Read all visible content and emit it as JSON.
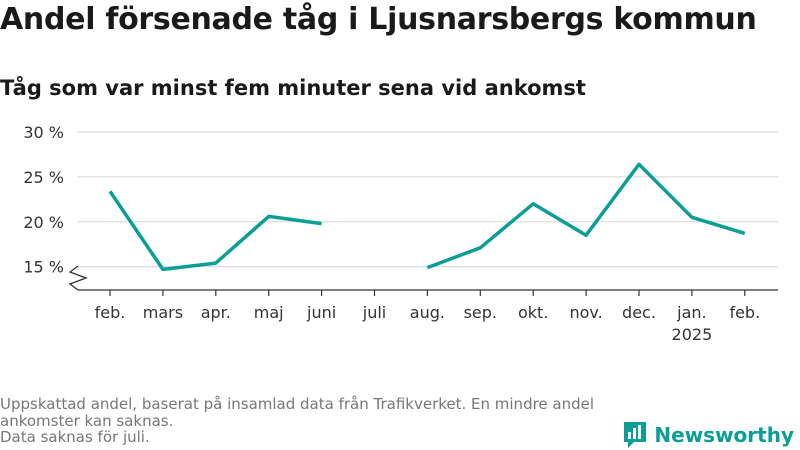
{
  "chart_data": {
    "type": "line",
    "title": "Andel försenade tåg i Ljusnarsbergs kommun",
    "subtitle": "Tåg som var minst fem minuter sena vid ankomst",
    "categories": [
      "feb.",
      "mars",
      "apr.",
      "maj",
      "juni",
      "juli",
      "aug.",
      "sep.",
      "okt.",
      "nov.",
      "dec.",
      "jan.",
      "feb."
    ],
    "year_labels": [
      "",
      "",
      "",
      "",
      "",
      "",
      "",
      "",
      "",
      "",
      "",
      "2025",
      ""
    ],
    "series": [
      {
        "values": [
          23.4,
          14.7,
          15.4,
          20.6,
          19.8,
          null,
          14.9,
          17.1,
          22.0,
          18.5,
          26.4,
          20.5,
          18.7
        ]
      }
    ],
    "yticks": [
      15,
      20,
      25,
      30
    ],
    "ytick_labels": [
      "15 %",
      "20 %",
      "25 %",
      "30 %"
    ],
    "ylim": [
      12.4,
      30
    ],
    "axis_break": true,
    "grid": true,
    "line_color": "#0a9e96",
    "grid_color": "#dddddd",
    "notes": [
      "Uppskattad andel, baserat på insamlad data från Trafikverket. En mindre andel ankomster kan saknas.",
      "Data saknas för juli."
    ]
  },
  "branding": {
    "name": "Newsworthy",
    "color": "#0a9e96",
    "icon": "newsworthy-logo-icon"
  }
}
